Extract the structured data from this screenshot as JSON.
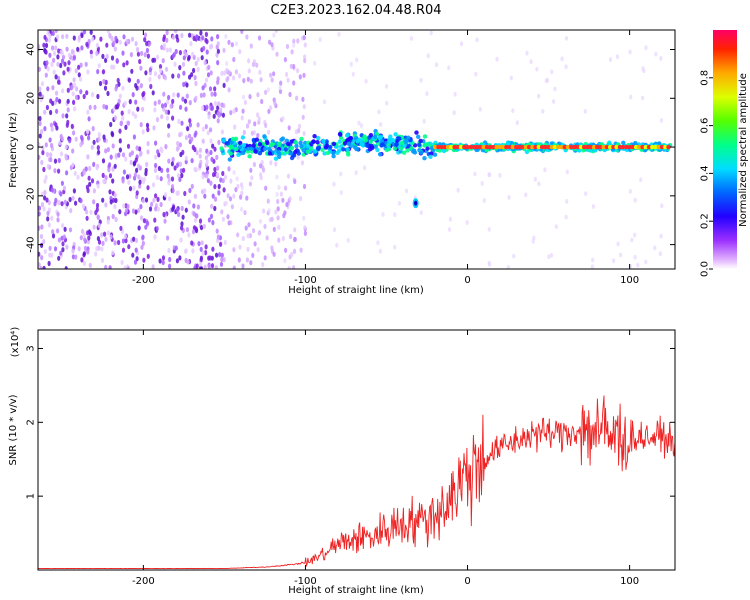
{
  "title": "C2E3.2023.162.04.48.R04",
  "colors": {
    "snr_line": "#ee2222",
    "background": "#ffffff",
    "scatter_purple": "#7a1fe0",
    "colorbar_stops": [
      "#cc33ff",
      "#6a00ff",
      "#0000ff",
      "#00ccff",
      "#00ff66",
      "#aaff00",
      "#ffcc00",
      "#ff0000",
      "#ff0066"
    ]
  },
  "chart_data": [
    {
      "type": "heatmap",
      "name": "spectrogram",
      "xlabel": "Height of straight line (km)",
      "ylabel": "Frequency (Hz)",
      "xlim": [
        -265,
        128
      ],
      "ylim": [
        -50,
        48
      ],
      "xticks": [
        -200,
        -100,
        0,
        100
      ],
      "yticks": [
        -40,
        -20,
        0,
        20,
        40
      ],
      "colorbar": {
        "label": "Normalized spectral amplitude",
        "range": [
          0,
          1
        ],
        "ticks": [
          0.0,
          0.2,
          0.4,
          0.6,
          0.8
        ]
      },
      "features": {
        "noise_region_x": [
          -265,
          -100
        ],
        "dense_noise_x": [
          -265,
          -150
        ],
        "signal_band_x": [
          -152,
          125
        ],
        "signal_center_freq_hz": 0,
        "signal_strong_from_x": -20,
        "isolated_blob": {
          "x": -32,
          "y": -23
        }
      }
    },
    {
      "type": "line",
      "name": "snr",
      "xlabel": "Height of straight line (km)",
      "ylabel": "SNR (10 * v/v)",
      "y_multiplier": "(x10⁴)",
      "xlim": [
        -265,
        128
      ],
      "ylim": [
        0,
        3.25
      ],
      "xticks": [
        -200,
        -100,
        0,
        100
      ],
      "yticks": [
        1,
        2,
        3
      ],
      "envelope": {
        "x": [
          -265,
          -150,
          -125,
          -110,
          -100,
          -90,
          -80,
          -70,
          -60,
          -50,
          -40,
          -30,
          -20,
          -10,
          0,
          10,
          20,
          30,
          40,
          50,
          60,
          70,
          80,
          90,
          100,
          110,
          120,
          128
        ],
        "y": [
          0.02,
          0.02,
          0.04,
          0.07,
          0.1,
          0.2,
          0.35,
          0.42,
          0.45,
          0.55,
          0.65,
          0.65,
          0.75,
          1.0,
          1.3,
          1.5,
          1.65,
          1.75,
          1.85,
          1.85,
          1.85,
          1.9,
          1.9,
          1.8,
          1.8,
          1.8,
          1.8,
          1.75
        ]
      }
    }
  ]
}
